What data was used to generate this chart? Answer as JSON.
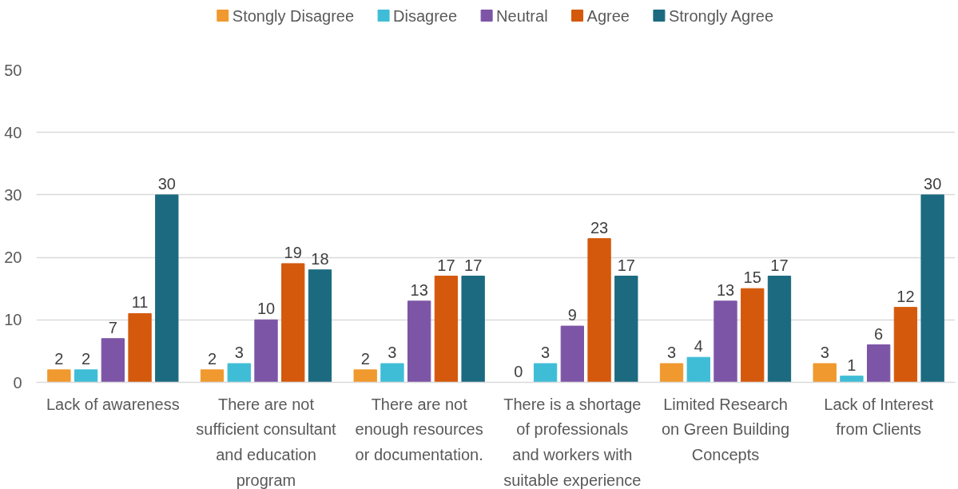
{
  "chart_data": {
    "type": "bar",
    "categories": [
      "Lack of awareness",
      "There are not sufficient consultant and education program",
      "There are not enough resources or documentation.",
      "There is a shortage of professionals and workers with suitable experience",
      "Limited Research on Green Building Concepts",
      "Lack of Interest from Clients"
    ],
    "series": [
      {
        "name": "Stongly Disagree",
        "color": "#f0992e",
        "values": [
          2,
          2,
          2,
          0,
          3,
          3
        ]
      },
      {
        "name": "Disagree",
        "color": "#3fbdd6",
        "values": [
          2,
          3,
          3,
          3,
          4,
          1
        ]
      },
      {
        "name": "Neutral",
        "color": "#7d55a6",
        "values": [
          7,
          10,
          13,
          9,
          13,
          6
        ]
      },
      {
        "name": "Agree",
        "color": "#d4590c",
        "values": [
          11,
          19,
          17,
          23,
          15,
          12
        ]
      },
      {
        "name": "Strongly Agree",
        "color": "#1b6a80",
        "values": [
          30,
          18,
          17,
          17,
          17,
          30
        ]
      }
    ],
    "ylim": [
      0,
      50
    ],
    "yticks": [
      0,
      10,
      20,
      30,
      40,
      50
    ],
    "grid": "y",
    "legend": "top",
    "data_labels": true
  }
}
